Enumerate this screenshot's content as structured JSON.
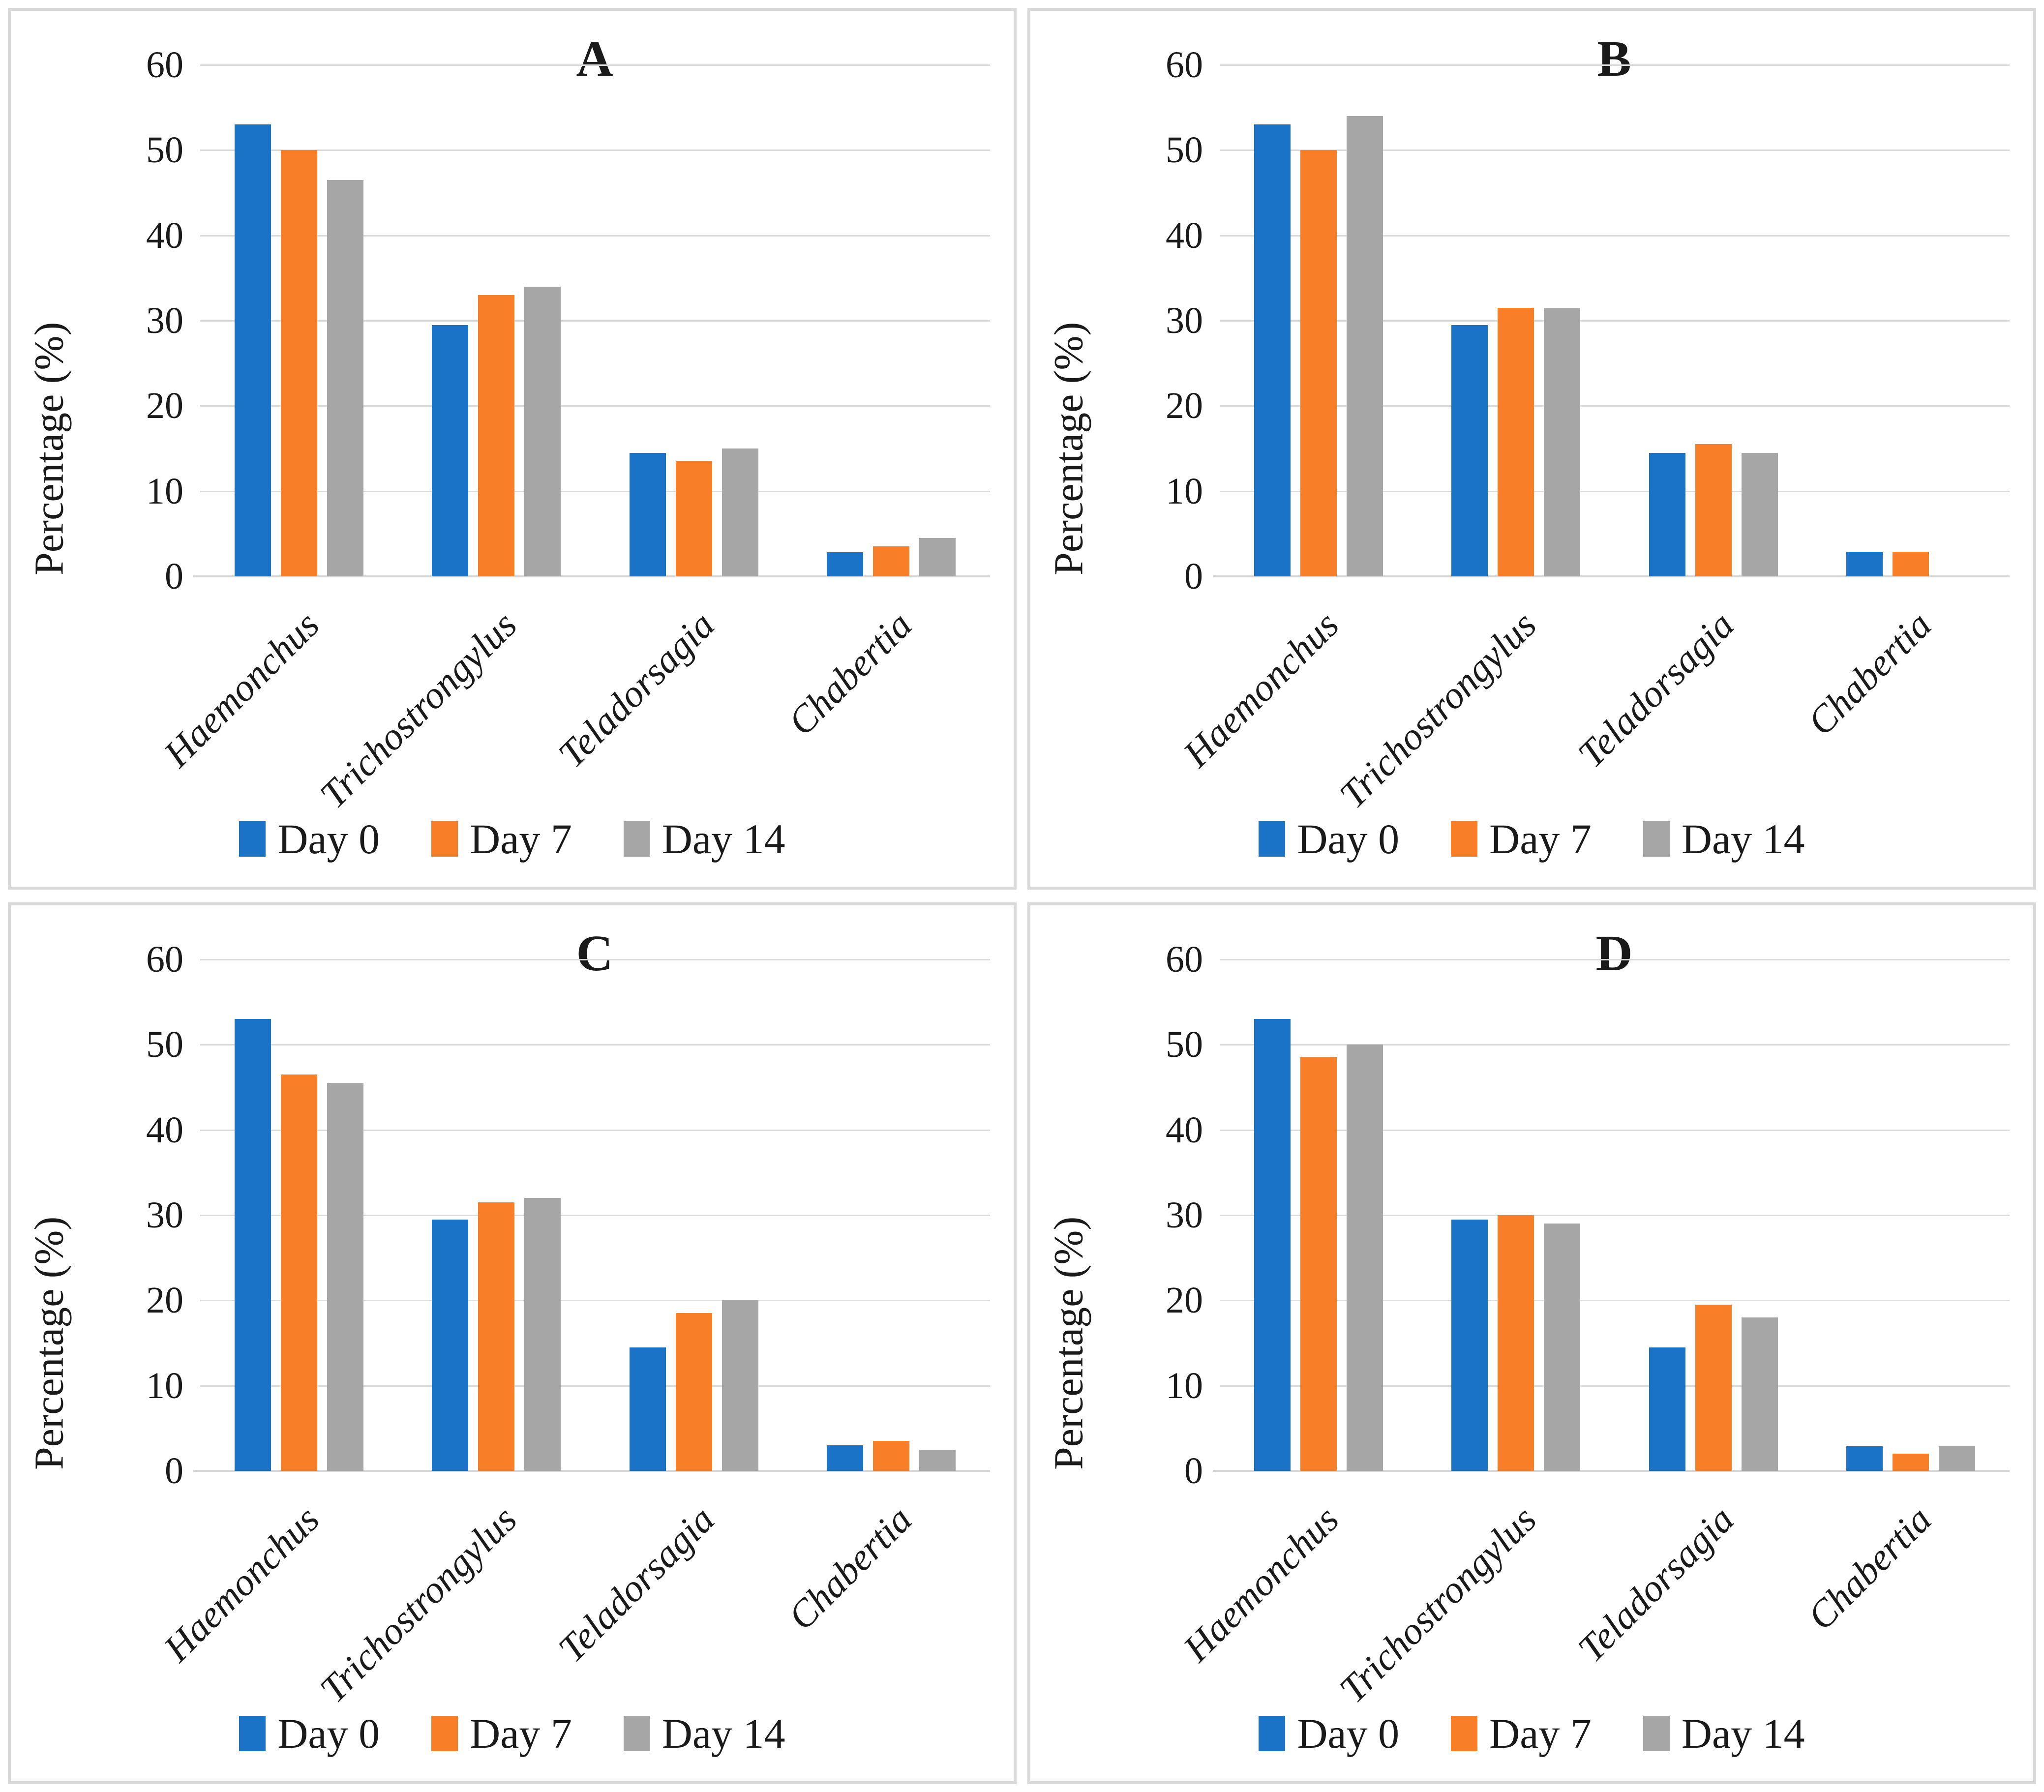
{
  "figure": {
    "ylabel": "Percentage (%)",
    "categories": [
      "Haemonchus",
      "Trichostrongylus",
      "Teladorsagia",
      "Chabertia"
    ],
    "legend_labels": [
      "Day 0",
      "Day 7",
      "Day 14"
    ],
    "colors": {
      "day0": "#1b73c8",
      "day7": "#f87e27",
      "day14": "#a6a6a6",
      "gridline": "#dadada",
      "axis": "#d6d6d6",
      "panel_border": "#d9d9d9",
      "text": "#1a1a1a"
    }
  },
  "chart_data": [
    {
      "type": "bar",
      "title": "A",
      "ylabel": "Percentage (%)",
      "ylim": [
        0,
        60
      ],
      "yticks": [
        0,
        10,
        20,
        30,
        40,
        50,
        60
      ],
      "grid": true,
      "legend_position": "bottom",
      "categories": [
        "Haemonchus",
        "Trichostrongylus",
        "Teladorsagia",
        "Chabertia"
      ],
      "series": [
        {
          "name": "Day 0",
          "values": [
            53,
            29.5,
            14.5,
            2.8
          ]
        },
        {
          "name": "Day 7",
          "values": [
            50,
            33,
            13.5,
            3.5
          ]
        },
        {
          "name": "Day 14",
          "values": [
            46.5,
            34,
            15,
            4.5
          ]
        }
      ]
    },
    {
      "type": "bar",
      "title": "B",
      "ylabel": "Percentage (%)",
      "ylim": [
        0,
        60
      ],
      "yticks": [
        0,
        10,
        20,
        30,
        40,
        50,
        60
      ],
      "grid": true,
      "legend_position": "bottom",
      "categories": [
        "Haemonchus",
        "Trichostrongylus",
        "Teladorsagia",
        "Chabertia"
      ],
      "series": [
        {
          "name": "Day 0",
          "values": [
            53,
            29.5,
            14.5,
            2.9
          ]
        },
        {
          "name": "Day 7",
          "values": [
            50,
            31.5,
            15.5,
            2.9
          ]
        },
        {
          "name": "Day 14",
          "values": [
            54,
            31.5,
            14.5,
            0
          ]
        }
      ]
    },
    {
      "type": "bar",
      "title": "C",
      "ylabel": "Percentage (%)",
      "ylim": [
        0,
        60
      ],
      "yticks": [
        0,
        10,
        20,
        30,
        40,
        50,
        60
      ],
      "grid": true,
      "legend_position": "bottom",
      "categories": [
        "Haemonchus",
        "Trichostrongylus",
        "Teladorsagia",
        "Chabertia"
      ],
      "series": [
        {
          "name": "Day 0",
          "values": [
            53,
            29.5,
            14.5,
            3
          ]
        },
        {
          "name": "Day 7",
          "values": [
            46.5,
            31.5,
            18.5,
            3.5
          ]
        },
        {
          "name": "Day 14",
          "values": [
            45.5,
            32,
            20,
            2.5
          ]
        }
      ]
    },
    {
      "type": "bar",
      "title": "D",
      "ylabel": "Percentage (%)",
      "ylim": [
        0,
        60
      ],
      "yticks": [
        0,
        10,
        20,
        30,
        40,
        50,
        60
      ],
      "grid": true,
      "legend_position": "bottom",
      "categories": [
        "Haemonchus",
        "Trichostrongylus",
        "Teladorsagia",
        "Chabertia"
      ],
      "series": [
        {
          "name": "Day 0",
          "values": [
            53,
            29.5,
            14.5,
            2.9
          ]
        },
        {
          "name": "Day 7",
          "values": [
            48.5,
            30,
            19.5,
            2
          ]
        },
        {
          "name": "Day 14",
          "values": [
            50,
            29,
            18,
            2.9
          ]
        }
      ]
    }
  ]
}
